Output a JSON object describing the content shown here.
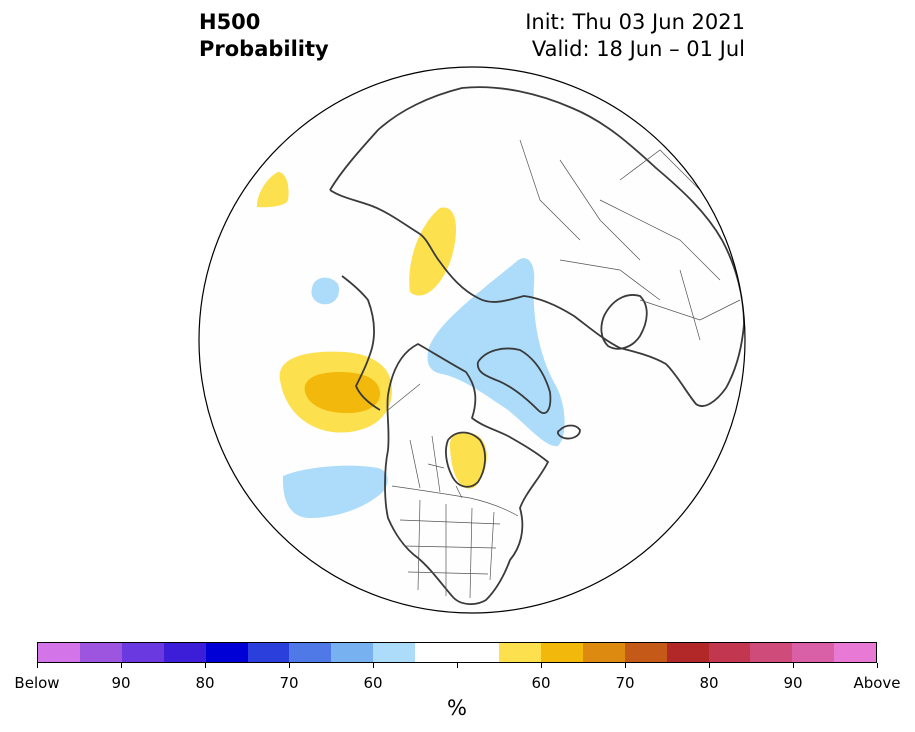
{
  "title": {
    "line1": "H500",
    "line2": "Probability",
    "init": "Init: Thu 03 Jun 2021",
    "valid": "Valid: 18 Jun – 01 Jul"
  },
  "map": {
    "projection": "north-polar-stereographic",
    "anomalies": [
      {
        "region": "western Canada / NE Pacific",
        "category": "above",
        "level": "60"
      },
      {
        "region": "Gulf of Alaska edge",
        "category": "above",
        "level": "55"
      },
      {
        "region": "Bering Sea / NE Siberia",
        "category": "above",
        "level": "55"
      },
      {
        "region": "Far East Russia",
        "category": "above",
        "level": "55"
      },
      {
        "region": "Hudson Bay",
        "category": "above",
        "level": "55"
      },
      {
        "region": "Greenland / Arctic Ocean",
        "category": "below",
        "level": "55"
      },
      {
        "region": "central North Pacific",
        "category": "below",
        "level": "55"
      },
      {
        "region": "western Pacific",
        "category": "below",
        "level": "55"
      }
    ]
  },
  "colorbar": {
    "colors": [
      "#d374e8",
      "#9d55e0",
      "#6a3ae0",
      "#3d1ed8",
      "#0000d6",
      "#2a3fdc",
      "#4e79e6",
      "#78b1f0",
      "#acdcfa",
      "#ffffff",
      "#ffffff",
      "#fde04e",
      "#f3b80c",
      "#dd8a10",
      "#c55918",
      "#b22828",
      "#c23650",
      "#cf4c7a",
      "#d960a6",
      "#e87ad6"
    ],
    "tick_labels": [
      "Below",
      "90",
      "80",
      "70",
      "60",
      "60",
      "70",
      "80",
      "90",
      "Above"
    ],
    "unit": "%"
  }
}
